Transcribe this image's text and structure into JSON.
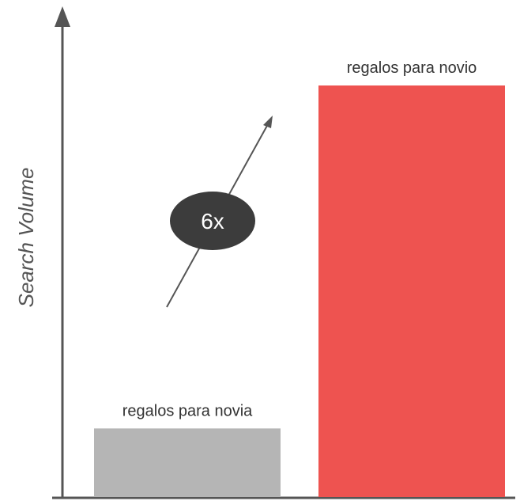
{
  "chart_data": {
    "type": "bar",
    "title": "",
    "xlabel": "",
    "ylabel": "Search Volume",
    "categories": [
      "regalos para novia",
      "regalos para novio"
    ],
    "values": [
      1,
      6
    ],
    "ylim": [
      0,
      6.9
    ],
    "grid": false,
    "colors": [
      "#b5b5b5",
      "#ee5350"
    ],
    "annotation": {
      "text": "6x",
      "arrow": "up-right"
    }
  }
}
